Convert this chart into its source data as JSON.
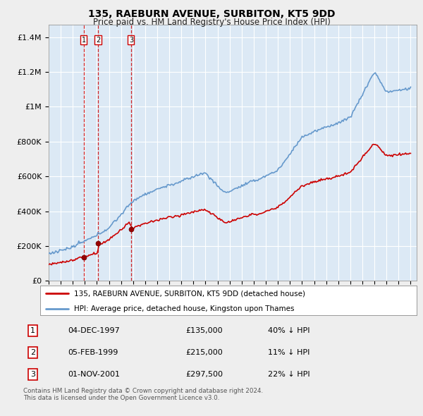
{
  "title": "135, RAEBURN AVENUE, SURBITON, KT5 9DD",
  "subtitle": "Price paid vs. HM Land Registry's House Price Index (HPI)",
  "ylabel_ticks": [
    "£0",
    "£200K",
    "£400K",
    "£600K",
    "£800K",
    "£1M",
    "£1.2M",
    "£1.4M"
  ],
  "ytick_values": [
    0,
    200000,
    400000,
    600000,
    800000,
    1000000,
    1200000,
    1400000
  ],
  "ylim": [
    0,
    1470000
  ],
  "xlim_start": 1995.0,
  "xlim_end": 2025.5,
  "sale_dates": [
    1997.92,
    1999.09,
    2001.83
  ],
  "sale_prices": [
    135000,
    215000,
    297500
  ],
  "sale_labels": [
    "1",
    "2",
    "3"
  ],
  "hpi_line_color": "#6699cc",
  "sale_line_color": "#cc0000",
  "sale_dot_color": "#990000",
  "vline_color": "#cc0000",
  "plot_bg_color": "#dce9f5",
  "bg_color": "#eeeeee",
  "grid_color": "#ffffff",
  "legend_label_red": "135, RAEBURN AVENUE, SURBITON, KT5 9DD (detached house)",
  "legend_label_blue": "HPI: Average price, detached house, Kingston upon Thames",
  "table_entries": [
    {
      "num": "1",
      "date": "04-DEC-1997",
      "price": "£135,000",
      "pct": "40% ↓ HPI"
    },
    {
      "num": "2",
      "date": "05-FEB-1999",
      "price": "£215,000",
      "pct": "11% ↓ HPI"
    },
    {
      "num": "3",
      "date": "01-NOV-2001",
      "price": "£297,500",
      "pct": "22% ↓ HPI"
    }
  ],
  "footer": "Contains HM Land Registry data © Crown copyright and database right 2024.\nThis data is licensed under the Open Government Licence v3.0."
}
